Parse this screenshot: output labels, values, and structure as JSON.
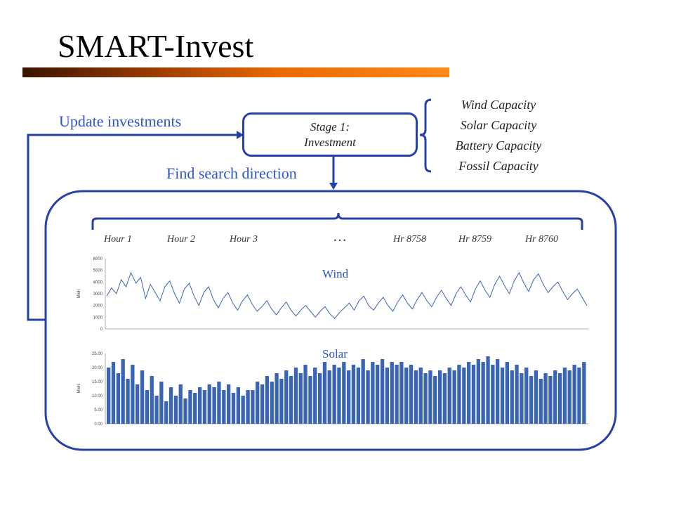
{
  "title": "SMART-Invest",
  "update_label": "Update investments",
  "search_label": "Find search direction",
  "stage": {
    "line1": "Stage 1:",
    "line2": "Investment"
  },
  "capacities": [
    "Wind Capacity",
    "Solar Capacity",
    "Battery Capacity",
    "Fossil Capacity"
  ],
  "hours": {
    "h1": "Hour 1",
    "h2": "Hour 2",
    "h3": "Hour 3",
    "ellipsis": "…",
    "h8758": "Hr 8758",
    "h8759": "Hr 8759",
    "h8760": "Hr 8760"
  },
  "colors": {
    "accent_blue": "#2e55c8",
    "box_blue": "#2540a8",
    "series_blue": "#3a64b4"
  },
  "chart_data": [
    {
      "type": "line",
      "title": "Wind",
      "ylim": [
        0,
        6000
      ],
      "yticks": [
        "6000",
        "5000",
        "4000",
        "3000",
        "2000",
        "1000",
        "0"
      ],
      "ylabel": "Mwh",
      "x_count": 8760,
      "series": [
        {
          "values": [
            2800,
            3500,
            3000,
            4200,
            3600,
            4800,
            3900,
            4400,
            2600,
            3800,
            3100,
            2400,
            3600,
            4100,
            3000,
            2200,
            3400,
            3900,
            2800,
            2000,
            3100,
            3600,
            2500,
            1800,
            2600,
            3100,
            2200,
            1600,
            2400,
            2900,
            2100,
            1500,
            1900,
            2400,
            1700,
            1200,
            1800,
            2300,
            1600,
            1100,
            1600,
            2000,
            1500,
            1000,
            1500,
            1900,
            1300,
            900,
            1400,
            1800,
            2200,
            1600,
            2400,
            2800,
            2000,
            1600,
            2200,
            2700,
            2000,
            1500,
            2300,
            2900,
            2200,
            1700,
            2500,
            3100,
            2400,
            1900,
            2700,
            3300,
            2600,
            2000,
            3000,
            3600,
            2900,
            2300,
            3400,
            4100,
            3300,
            2700,
            3800,
            4500,
            3700,
            3000,
            4100,
            4800,
            3900,
            3200,
            4200,
            4700,
            3800,
            3100,
            3600,
            4000,
            3200,
            2500,
            3000,
            3400,
            2700,
            2000
          ]
        }
      ]
    },
    {
      "type": "bar",
      "title": "Solar",
      "ylim": [
        0,
        25
      ],
      "yticks": [
        "25.00",
        "20.00",
        "15.00",
        "10.00",
        "5.00",
        "0.00"
      ],
      "ylabel": "Mwh",
      "x_count": 8760,
      "series": [
        {
          "values": [
            20,
            22,
            18,
            23,
            16,
            21,
            14,
            19,
            12,
            17,
            10,
            15,
            8,
            13,
            10,
            14,
            9,
            12,
            11,
            13,
            12,
            14,
            13,
            15,
            12,
            14,
            11,
            13,
            10,
            12,
            12,
            15,
            14,
            17,
            15,
            18,
            16,
            19,
            17,
            20,
            18,
            21,
            17,
            20,
            18,
            22,
            19,
            21,
            20,
            22,
            19,
            21,
            20,
            23,
            19,
            22,
            21,
            23,
            20,
            22,
            21,
            22,
            20,
            21,
            19,
            20,
            18,
            19,
            17,
            19,
            18,
            20,
            19,
            21,
            20,
            22,
            21,
            23,
            22,
            24,
            21,
            23,
            20,
            22,
            19,
            21,
            18,
            20,
            17,
            19,
            16,
            18,
            17,
            19,
            18,
            20,
            19,
            21,
            20,
            22
          ]
        }
      ]
    }
  ]
}
